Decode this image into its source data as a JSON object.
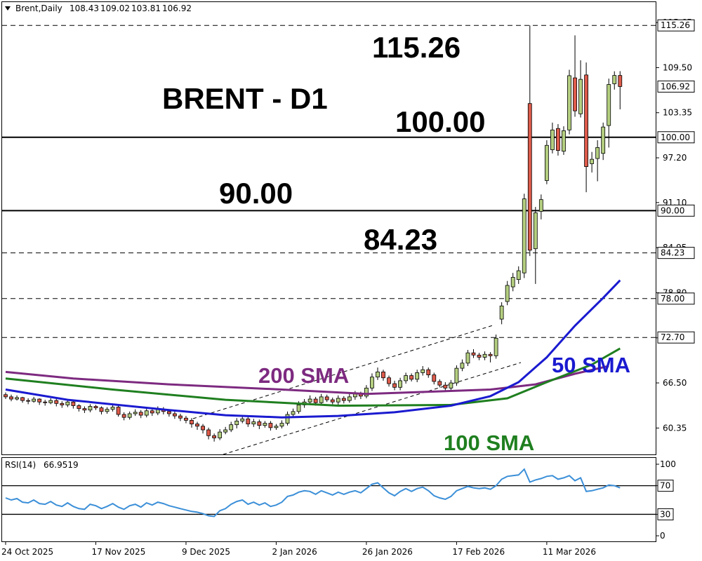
{
  "chart_data": [
    {
      "type": "candlestick",
      "title": "Brent,Daily",
      "annotations": [
        "BRENT - D1",
        "115.26",
        "100.00",
        "90.00",
        "84.23"
      ],
      "categories": [
        "24 Oct 2025",
        null,
        null,
        null,
        null,
        null,
        null,
        null,
        null,
        null,
        null,
        null,
        null,
        null,
        null,
        null,
        "17 Nov 2025",
        null,
        null,
        null,
        null,
        null,
        null,
        null,
        null,
        null,
        null,
        null,
        null,
        null,
        null,
        null,
        "9 Dec 2025",
        null,
        null,
        null,
        null,
        null,
        null,
        null,
        null,
        null,
        null,
        null,
        null,
        null,
        null,
        null,
        "2 Jan 2026",
        null,
        null,
        null,
        null,
        null,
        null,
        null,
        null,
        null,
        null,
        null,
        null,
        null,
        null,
        null,
        "26 Jan 2026",
        null,
        null,
        null,
        null,
        null,
        null,
        null,
        null,
        null,
        null,
        null,
        null,
        null,
        null,
        null,
        "17 Feb 2026",
        null,
        null,
        null,
        null,
        null,
        null,
        null,
        null,
        null,
        null,
        null,
        null,
        null,
        null,
        null,
        "11 Mar 2026",
        null,
        null,
        null,
        null,
        null,
        null,
        null,
        null,
        null,
        null,
        null,
        null,
        null
      ],
      "open": [
        64.9,
        64.6,
        64.3,
        64.5,
        64.1,
        64.0,
        64.3,
        63.9,
        63.8,
        64.1,
        63.7,
        63.5,
        63.9,
        63.4,
        63.0,
        62.8,
        63.3,
        63.1,
        62.6,
        62.9,
        63.2,
        62.2,
        61.8,
        62.3,
        62.5,
        62.1,
        62.7,
        62.4,
        62.9,
        62.6,
        62.3,
        62.0,
        61.7,
        61.4,
        60.9,
        60.6,
        60.1,
        59.3,
        59.0,
        59.8,
        60.1,
        60.8,
        61.3,
        61.6,
        60.9,
        61.2,
        60.7,
        61.0,
        60.4,
        60.6,
        61.0,
        62.2,
        62.6,
        63.5,
        63.9,
        64.3,
        63.8,
        64.6,
        64.2,
        63.9,
        64.4,
        64.1,
        64.6,
        65.0,
        64.7,
        65.8,
        67.3,
        68.0,
        67.2,
        66.4,
        65.9,
        66.8,
        67.5,
        67.0,
        67.9,
        68.3,
        67.6,
        66.7,
        66.2,
        65.8,
        66.5,
        68.5,
        69.2,
        70.6,
        70.3,
        70.0,
        70.4,
        70.2,
        75.2,
        77.6,
        79.6,
        80.6,
        81.5,
        104.6,
        84.8,
        89.9,
        94.1,
        98.3,
        101.2,
        98.1,
        101.0,
        108.1,
        103.2,
        108.5,
        96.4,
        97.1,
        97.8,
        101.6,
        107.3,
        108.43
      ],
      "high": [
        65.2,
        64.9,
        64.8,
        64.6,
        64.4,
        64.6,
        64.4,
        64.2,
        64.4,
        64.3,
        64.0,
        64.2,
        64.1,
        63.6,
        63.3,
        63.6,
        63.5,
        63.3,
        63.2,
        63.5,
        63.4,
        62.5,
        62.6,
        62.9,
        62.8,
        63.0,
        62.9,
        63.3,
        63.2,
        62.9,
        62.6,
        62.3,
        62.0,
        61.7,
        61.2,
        60.9,
        60.4,
        59.6,
        60.2,
        60.5,
        61.2,
        61.7,
        62.0,
        61.9,
        61.6,
        61.5,
        61.3,
        61.3,
        60.9,
        61.4,
        62.6,
        63.0,
        64.0,
        64.3,
        64.8,
        64.6,
        65.0,
        64.9,
        64.5,
        64.8,
        64.7,
        65.0,
        65.4,
        65.3,
        66.2,
        67.8,
        68.6,
        68.3,
        67.5,
        66.8,
        67.2,
        67.9,
        67.8,
        68.3,
        68.8,
        68.6,
        67.9,
        67.0,
        66.6,
        66.9,
        68.9,
        69.7,
        71.0,
        71.1,
        70.6,
        70.8,
        70.7,
        73.1,
        77.5,
        80.4,
        81.5,
        82.4,
        92.3,
        115.26,
        90.5,
        92.2,
        99.6,
        102.0,
        101.8,
        101.5,
        109.2,
        113.9,
        110.5,
        110.2,
        98.0,
        99.6,
        102.0,
        108.0,
        109.0,
        109.02
      ],
      "low": [
        64.3,
        64.0,
        64.1,
        63.8,
        63.6,
        63.8,
        63.5,
        63.4,
        63.6,
        63.3,
        63.1,
        63.2,
        63.0,
        62.6,
        62.4,
        62.5,
        62.8,
        62.2,
        62.3,
        62.6,
        61.9,
        61.4,
        61.5,
        62.0,
        61.7,
        61.8,
        62.0,
        62.1,
        62.2,
        61.9,
        61.6,
        61.3,
        61.0,
        60.4,
        60.1,
        59.6,
        58.8,
        58.5,
        58.7,
        59.5,
        59.8,
        60.3,
        61.0,
        60.5,
        60.5,
        60.2,
        60.4,
        60.0,
        60.1,
        60.3,
        60.7,
        61.9,
        62.3,
        63.1,
        63.6,
        63.4,
        63.5,
        63.9,
        63.6,
        63.5,
        63.7,
        63.8,
        64.2,
        64.3,
        64.4,
        65.4,
        66.9,
        66.8,
        66.0,
        65.5,
        65.5,
        66.4,
        66.7,
        66.6,
        67.5,
        67.2,
        66.3,
        65.9,
        65.4,
        65.4,
        66.1,
        68.1,
        68.8,
        69.9,
        69.6,
        69.6,
        69.3,
        69.8,
        74.5,
        77.1,
        79.0,
        80.0,
        80.8,
        83.8,
        80.0,
        88.8,
        93.6,
        97.8,
        97.5,
        97.6,
        100.4,
        102.8,
        102.7,
        92.5,
        95.2,
        94.0,
        96.9,
        98.6,
        106.5,
        103.81
      ],
      "close": [
        64.6,
        64.3,
        64.5,
        64.1,
        64.0,
        64.3,
        63.9,
        63.8,
        64.1,
        63.7,
        63.5,
        63.9,
        63.4,
        63.0,
        62.8,
        63.3,
        63.1,
        62.6,
        62.9,
        63.2,
        62.2,
        61.8,
        62.3,
        62.5,
        62.1,
        62.7,
        62.4,
        62.9,
        62.6,
        62.3,
        62.0,
        61.7,
        61.4,
        60.9,
        60.6,
        60.1,
        59.3,
        59.0,
        59.8,
        60.1,
        60.8,
        61.3,
        61.6,
        60.9,
        61.2,
        60.7,
        61.0,
        60.4,
        60.6,
        61.0,
        62.2,
        62.6,
        63.5,
        63.9,
        64.3,
        63.8,
        64.6,
        64.2,
        63.9,
        64.4,
        64.1,
        64.6,
        65.0,
        64.7,
        65.8,
        67.3,
        68.0,
        67.2,
        66.4,
        65.9,
        66.8,
        67.5,
        67.0,
        67.9,
        68.3,
        67.6,
        66.7,
        66.2,
        65.8,
        66.5,
        68.5,
        69.2,
        70.6,
        70.3,
        70.0,
        70.4,
        70.2,
        72.6,
        77.0,
        79.8,
        80.9,
        81.8,
        91.6,
        84.6,
        89.7,
        91.5,
        98.9,
        101.0,
        98.2,
        100.9,
        108.4,
        103.6,
        107.9,
        96.0,
        97.0,
        98.6,
        101.4,
        107.2,
        108.43,
        106.92
      ],
      "up_color": "#b4cf80",
      "down_color": "#dd5b4b",
      "series": [
        {
          "name": "200 SMA",
          "color": "#7d2a80",
          "x": [
            0,
            12,
            29,
            49,
            64,
            86,
            94,
            101,
            107
          ],
          "values": [
            68.0,
            67.1,
            66.3,
            65.6,
            65.0,
            65.6,
            66.3,
            67.75,
            68.8
          ]
        },
        {
          "name": "100 SMA",
          "color": "#1f7f1f",
          "x": [
            0,
            19,
            39,
            59,
            79,
            89,
            96,
            104,
            109
          ],
          "values": [
            67.1,
            65.6,
            64.2,
            63.4,
            63.5,
            64.4,
            66.6,
            69.0,
            71.2
          ]
        },
        {
          "name": "50 SMA",
          "color": "#1a1ad0",
          "x": [
            0,
            11,
            29,
            39,
            49,
            59,
            69,
            79,
            86,
            91,
            96,
            101,
            106,
            109
          ],
          "values": [
            65.6,
            64.2,
            62.8,
            62.1,
            61.8,
            62.0,
            62.5,
            63.4,
            64.7,
            66.6,
            70.0,
            74.3,
            78.1,
            80.5
          ]
        }
      ],
      "levels": [
        {
          "value": 115.26,
          "style": "dashed"
        },
        {
          "value": 100,
          "label": "100.00",
          "style": "solid"
        },
        {
          "value": 90,
          "label": "90.00",
          "style": "solid"
        },
        {
          "value": 84.23,
          "style": "dashed"
        },
        {
          "value": 78,
          "label": "78.00",
          "style": "dashed"
        },
        {
          "value": 72.7,
          "label": "72.70",
          "style": "dashed"
        }
      ],
      "ylim": [
        56.75,
        117.0
      ],
      "yticks": [
        60.35,
        {
          "value": 66.5,
          "label": "66.50"
        },
        72.65,
        {
          "value": 78.8,
          "label": "78.80"
        },
        84.95,
        {
          "value": 91.1,
          "label": "91.10"
        },
        {
          "value": 97.2,
          "label": "97.20"
        },
        103.35,
        {
          "value": 109.5,
          "label": "109.50"
        },
        115.65
      ]
    },
    {
      "type": "line",
      "title": "RSI(14)",
      "color": "#3b8fd8",
      "values": [
        53,
        50,
        52,
        47,
        46,
        50,
        45,
        44,
        48,
        43,
        41,
        46,
        41,
        38,
        37,
        44,
        42,
        38,
        41,
        45,
        40,
        37,
        42,
        44,
        40,
        46,
        43,
        47,
        45,
        42,
        40,
        38,
        36,
        34,
        33,
        31,
        28,
        27,
        35,
        38,
        44,
        48,
        50,
        44,
        47,
        43,
        46,
        41,
        43,
        47,
        55,
        57,
        61,
        63,
        62,
        58,
        63,
        60,
        57,
        61,
        58,
        61,
        63,
        60,
        66,
        72,
        74,
        67,
        60,
        56,
        62,
        66,
        62,
        66,
        68,
        63,
        56,
        53,
        51,
        55,
        63,
        66,
        69,
        67,
        66,
        67,
        65,
        70,
        79,
        83,
        84,
        85,
        93,
        75,
        78,
        80,
        83,
        84,
        79,
        81,
        84,
        77,
        81,
        62,
        63,
        65,
        67,
        71,
        70,
        66.9519
      ],
      "levels": [
        70,
        30
      ],
      "ylim": [
        -7.8,
        109.8
      ],
      "yticks": [
        0,
        30,
        70,
        100
      ]
    }
  ]
}
